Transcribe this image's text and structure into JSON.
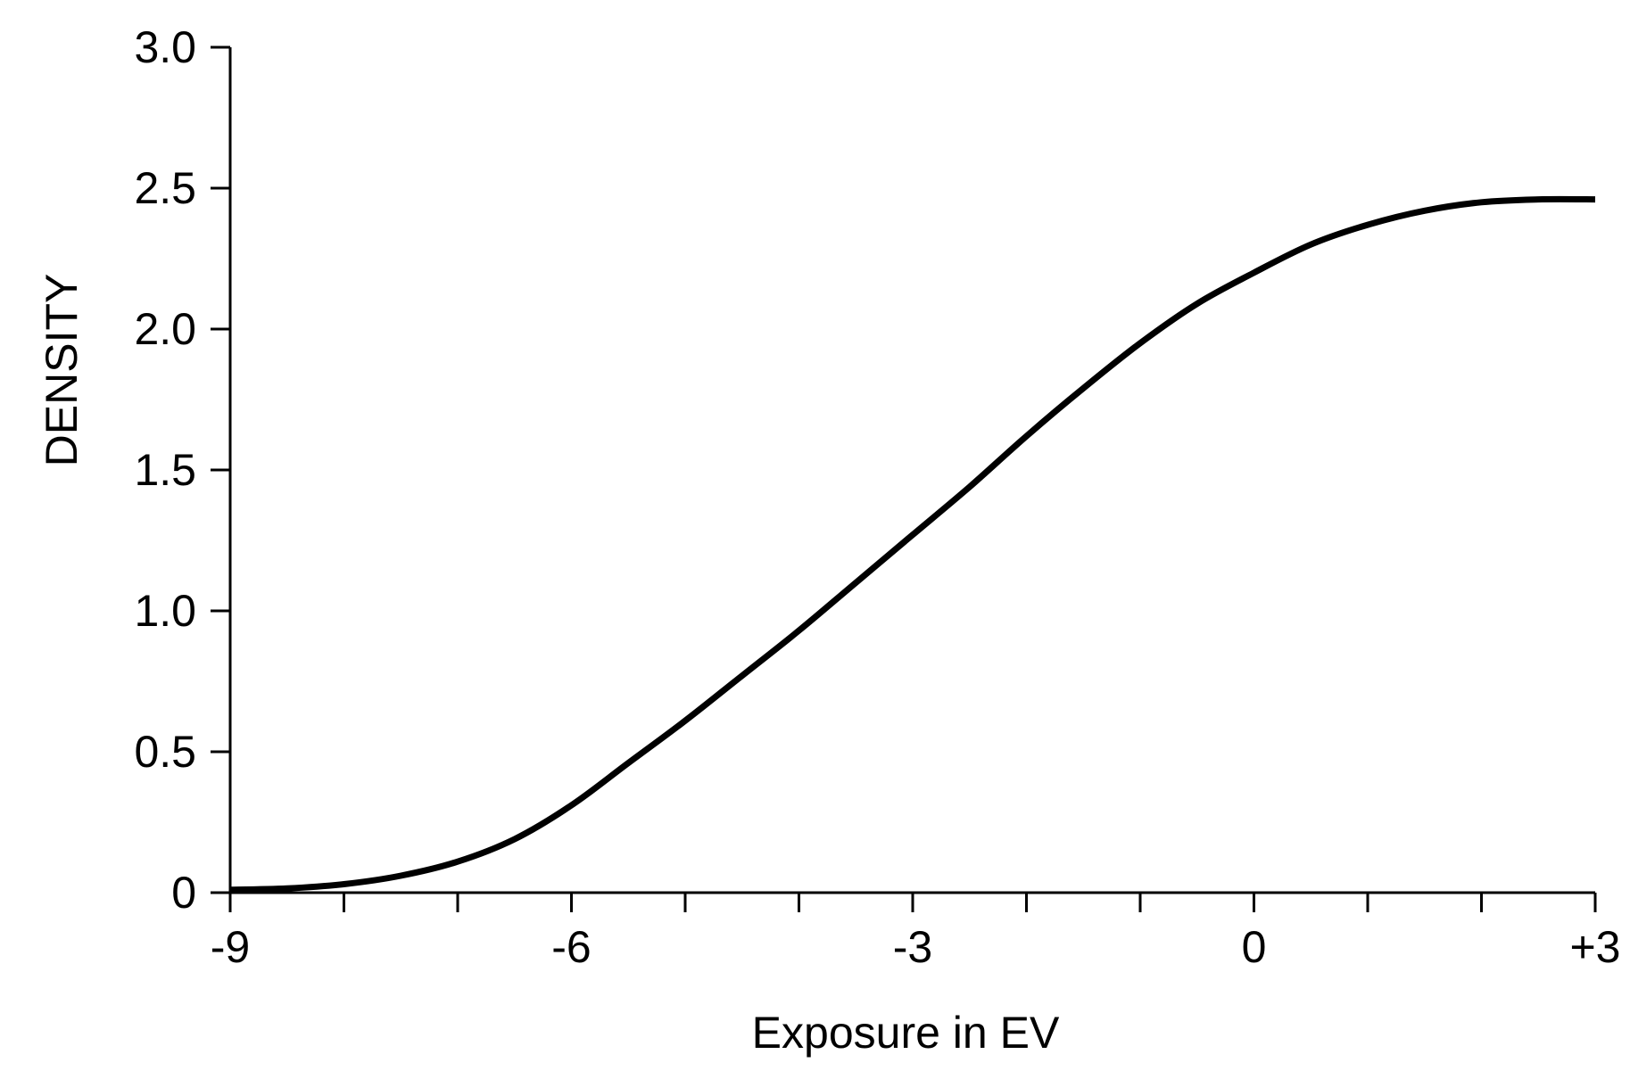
{
  "chart_data": {
    "type": "line",
    "title": "",
    "xlabel": "Exposure in EV",
    "ylabel": "DENSITY",
    "xlim": [
      -9,
      3
    ],
    "ylim": [
      0,
      3.0
    ],
    "grid": false,
    "x_ticks": [
      -9,
      -6,
      -3,
      0,
      3
    ],
    "x_tick_labels": [
      "-9",
      "-6",
      "-3",
      "0",
      "+3"
    ],
    "x_minor_ticks": [
      -8,
      -7,
      -5,
      -4,
      -2,
      -1,
      1,
      2
    ],
    "y_ticks": [
      0,
      0.5,
      1.0,
      1.5,
      2.0,
      2.5,
      3.0
    ],
    "y_tick_labels": [
      "0",
      "0.5",
      "1.0",
      "1.5",
      "2.0",
      "2.5",
      "3.0"
    ],
    "series": [
      {
        "name": "",
        "color": "#000000",
        "x": [
          -9,
          -8.5,
          -8,
          -7.5,
          -7,
          -6.5,
          -6,
          -5.5,
          -5,
          -4.5,
          -4,
          -3.5,
          -3,
          -2.5,
          -2,
          -1.5,
          -1,
          -0.5,
          0,
          0.5,
          1,
          1.5,
          2,
          2.5,
          3
        ],
        "y": [
          0.01,
          0.015,
          0.03,
          0.06,
          0.11,
          0.19,
          0.31,
          0.46,
          0.61,
          0.77,
          0.93,
          1.1,
          1.27,
          1.44,
          1.62,
          1.79,
          1.95,
          2.09,
          2.2,
          2.3,
          2.37,
          2.42,
          2.45,
          2.46,
          2.46
        ]
      }
    ]
  }
}
